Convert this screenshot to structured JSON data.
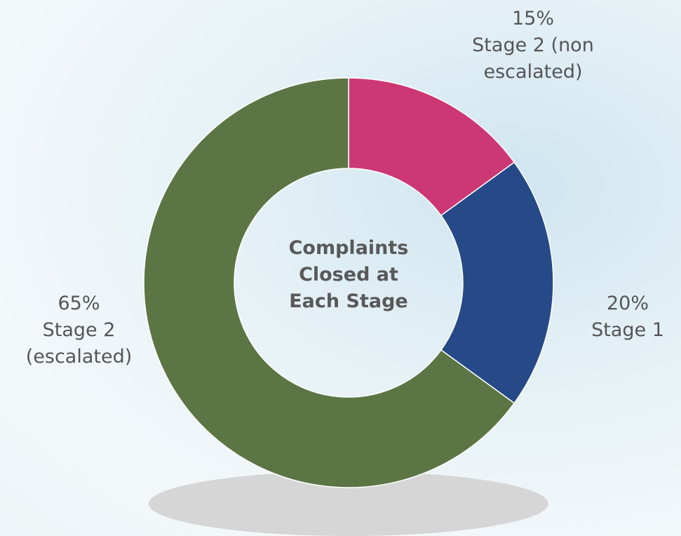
{
  "chart_data": {
    "type": "donut",
    "title": "Complaints Closed at Each Stage",
    "categories": [
      "Stage 2 (non escalated)",
      "Stage 1",
      "Stage 2 (escalated)"
    ],
    "values": [
      15,
      20,
      65
    ],
    "value_labels": [
      "15%",
      "20%",
      "65%"
    ],
    "colors": [
      "#cc3873",
      "#254a87",
      "#5c7545"
    ]
  }
}
